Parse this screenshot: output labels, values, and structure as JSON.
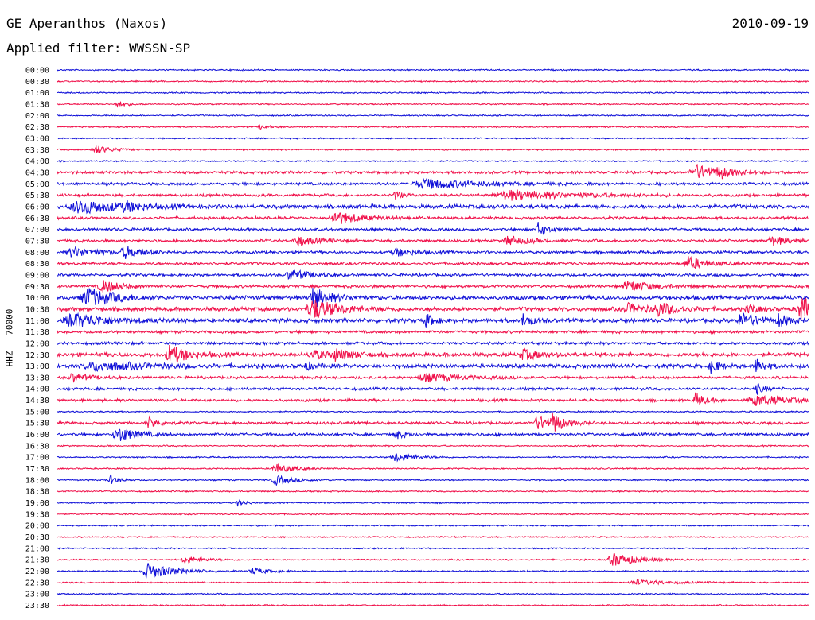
{
  "header": {
    "title": "GE Aperanthos (Naxos)",
    "date": "2010-09-19",
    "filter": "Applied filter: WWSSN-SP"
  },
  "chart_data": {
    "type": "line",
    "title": "GE Aperanthos (Naxos)",
    "subtitle": "Applied filter: WWSSN-SP",
    "xlabel": "",
    "ylabel": "HHZ - 70000",
    "grid": false,
    "colors": [
      "#1010d8",
      "#f0104a"
    ],
    "categories": [
      "00:00",
      "00:30",
      "01:00",
      "01:30",
      "02:00",
      "02:30",
      "03:00",
      "03:30",
      "04:00",
      "04:30",
      "05:00",
      "05:30",
      "06:00",
      "06:30",
      "07:00",
      "07:30",
      "08:00",
      "08:30",
      "09:00",
      "09:30",
      "10:00",
      "10:30",
      "11:00",
      "11:30",
      "12:00",
      "12:30",
      "13:00",
      "13:30",
      "14:00",
      "14:30",
      "15:00",
      "15:30",
      "16:00",
      "16:30",
      "17:00",
      "17:30",
      "18:00",
      "18:30",
      "19:00",
      "19:30",
      "20:00",
      "20:30",
      "21:00",
      "21:30",
      "22:00",
      "22:30",
      "23:00",
      "23:30"
    ],
    "noise_levels": [
      1,
      1,
      1,
      1,
      1,
      1,
      1,
      1,
      1,
      2,
      2,
      2,
      3,
      2,
      2,
      2,
      2,
      2,
      2,
      2,
      3,
      3,
      3,
      2,
      2,
      3,
      3,
      2,
      2,
      2,
      1,
      2,
      2,
      1,
      1,
      1,
      1,
      1,
      1,
      1,
      1,
      1,
      1,
      1,
      1,
      1,
      1,
      1
    ],
    "events": [
      {
        "row": 3,
        "x": 0.08,
        "amp": 4,
        "w": 0.01
      },
      {
        "row": 5,
        "x": 0.27,
        "amp": 3,
        "w": 0.01
      },
      {
        "row": 7,
        "x": 0.05,
        "amp": 5,
        "w": 0.02
      },
      {
        "row": 9,
        "x": 0.85,
        "amp": 9,
        "w": 0.03
      },
      {
        "row": 9,
        "x": 0.88,
        "amp": 6,
        "w": 0.01
      },
      {
        "row": 10,
        "x": 0.49,
        "amp": 6,
        "w": 0.06
      },
      {
        "row": 11,
        "x": 0.45,
        "amp": 5,
        "w": 0.01
      },
      {
        "row": 11,
        "x": 0.6,
        "amp": 6,
        "w": 0.07
      },
      {
        "row": 12,
        "x": 0.03,
        "amp": 8,
        "w": 0.05
      },
      {
        "row": 12,
        "x": 0.09,
        "amp": 5,
        "w": 0.01
      },
      {
        "row": 13,
        "x": 0.37,
        "amp": 8,
        "w": 0.03
      },
      {
        "row": 14,
        "x": 0.64,
        "amp": 9,
        "w": 0.01
      },
      {
        "row": 15,
        "x": 0.32,
        "amp": 6,
        "w": 0.02
      },
      {
        "row": 15,
        "x": 0.6,
        "amp": 6,
        "w": 0.02
      },
      {
        "row": 15,
        "x": 0.95,
        "amp": 6,
        "w": 0.02
      },
      {
        "row": 16,
        "x": 0.02,
        "amp": 6,
        "w": 0.03
      },
      {
        "row": 16,
        "x": 0.09,
        "amp": 7,
        "w": 0.02
      },
      {
        "row": 16,
        "x": 0.45,
        "amp": 5,
        "w": 0.02
      },
      {
        "row": 17,
        "x": 0.84,
        "amp": 8,
        "w": 0.02
      },
      {
        "row": 18,
        "x": 0.31,
        "amp": 7,
        "w": 0.02
      },
      {
        "row": 19,
        "x": 0.06,
        "amp": 8,
        "w": 0.02
      },
      {
        "row": 19,
        "x": 0.76,
        "amp": 7,
        "w": 0.03
      },
      {
        "row": 20,
        "x": 0.04,
        "amp": 12,
        "w": 0.03
      },
      {
        "row": 20,
        "x": 0.34,
        "amp": 12,
        "w": 0.02
      },
      {
        "row": 21,
        "x": 0.34,
        "amp": 12,
        "w": 0.03
      },
      {
        "row": 21,
        "x": 0.76,
        "amp": 6,
        "w": 0.02
      },
      {
        "row": 21,
        "x": 0.8,
        "amp": 8,
        "w": 0.02
      },
      {
        "row": 21,
        "x": 0.92,
        "amp": 6,
        "w": 0.01
      },
      {
        "row": 21,
        "x": 0.99,
        "amp": 14,
        "w": 0.02
      },
      {
        "row": 22,
        "x": 0.02,
        "amp": 9,
        "w": 0.04
      },
      {
        "row": 22,
        "x": 0.49,
        "amp": 8,
        "w": 0.01
      },
      {
        "row": 22,
        "x": 0.62,
        "amp": 8,
        "w": 0.01
      },
      {
        "row": 22,
        "x": 0.91,
        "amp": 9,
        "w": 0.02
      },
      {
        "row": 22,
        "x": 0.96,
        "amp": 8,
        "w": 0.01
      },
      {
        "row": 25,
        "x": 0.15,
        "amp": 12,
        "w": 0.02
      },
      {
        "row": 25,
        "x": 0.34,
        "amp": 5,
        "w": 0.02
      },
      {
        "row": 25,
        "x": 0.37,
        "amp": 6,
        "w": 0.02
      },
      {
        "row": 25,
        "x": 0.62,
        "amp": 6,
        "w": 0.02
      },
      {
        "row": 26,
        "x": 0.05,
        "amp": 5,
        "w": 0.06
      },
      {
        "row": 26,
        "x": 0.33,
        "amp": 5,
        "w": 0.01
      },
      {
        "row": 26,
        "x": 0.87,
        "amp": 8,
        "w": 0.01
      },
      {
        "row": 26,
        "x": 0.93,
        "amp": 9,
        "w": 0.01
      },
      {
        "row": 27,
        "x": 0.02,
        "amp": 5,
        "w": 0.02
      },
      {
        "row": 27,
        "x": 0.49,
        "amp": 5,
        "w": 0.04
      },
      {
        "row": 28,
        "x": 0.93,
        "amp": 6,
        "w": 0.01
      },
      {
        "row": 29,
        "x": 0.85,
        "amp": 9,
        "w": 0.01
      },
      {
        "row": 29,
        "x": 0.93,
        "amp": 6,
        "w": 0.04
      },
      {
        "row": 31,
        "x": 0.12,
        "amp": 8,
        "w": 0.01
      },
      {
        "row": 31,
        "x": 0.64,
        "amp": 9,
        "w": 0.02
      },
      {
        "row": 31,
        "x": 0.66,
        "amp": 10,
        "w": 0.01
      },
      {
        "row": 32,
        "x": 0.08,
        "amp": 10,
        "w": 0.02
      },
      {
        "row": 32,
        "x": 0.45,
        "amp": 6,
        "w": 0.01
      },
      {
        "row": 34,
        "x": 0.45,
        "amp": 6,
        "w": 0.02
      },
      {
        "row": 35,
        "x": 0.29,
        "amp": 6,
        "w": 0.02
      },
      {
        "row": 36,
        "x": 0.07,
        "amp": 6,
        "w": 0.01
      },
      {
        "row": 36,
        "x": 0.29,
        "amp": 6,
        "w": 0.02
      },
      {
        "row": 38,
        "x": 0.24,
        "amp": 4,
        "w": 0.01
      },
      {
        "row": 43,
        "x": 0.17,
        "amp": 5,
        "w": 0.02
      },
      {
        "row": 43,
        "x": 0.74,
        "amp": 8,
        "w": 0.03
      },
      {
        "row": 44,
        "x": 0.12,
        "amp": 10,
        "w": 0.03
      },
      {
        "row": 44,
        "x": 0.26,
        "amp": 4,
        "w": 0.02
      },
      {
        "row": 45,
        "x": 0.77,
        "amp": 3,
        "w": 0.04
      }
    ]
  }
}
